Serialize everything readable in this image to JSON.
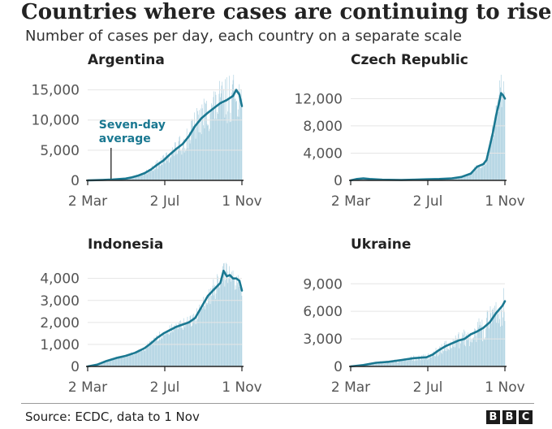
{
  "title": "Countries where cases are continuing to rise",
  "subtitle": "Number of cases per day, each country on a separate scale",
  "source": "Source: ECDC, data to 1 Nov",
  "logo": [
    "B",
    "B",
    "C"
  ],
  "colors": {
    "bar": "#a9cfdf",
    "line": "#1a7891",
    "annotation": "#1a7891",
    "axis": "#222222",
    "grid": "#e5e5e5"
  },
  "chart_data": [
    {
      "type": "bar",
      "title": "Argentina",
      "xlabel": "",
      "ylabel": "",
      "x_ticks": [
        "2 Mar",
        "2 Jul",
        "1 Nov"
      ],
      "x_tick_days": [
        0,
        122,
        244
      ],
      "ylim": [
        0,
        17500
      ],
      "y_ticks": [
        0,
        5000,
        10000,
        15000
      ],
      "y_tick_labels": [
        "0",
        "5,000",
        "10,000",
        "15,000"
      ],
      "daily_noise": 0.3,
      "seven_day_average": [
        [
          0,
          0
        ],
        [
          20,
          60
        ],
        [
          40,
          150
        ],
        [
          60,
          300
        ],
        [
          70,
          500
        ],
        [
          80,
          800
        ],
        [
          90,
          1200
        ],
        [
          100,
          1800
        ],
        [
          110,
          2600
        ],
        [
          120,
          3300
        ],
        [
          130,
          4300
        ],
        [
          140,
          5200
        ],
        [
          150,
          6000
        ],
        [
          160,
          7300
        ],
        [
          170,
          9000
        ],
        [
          180,
          10300
        ],
        [
          190,
          11200
        ],
        [
          200,
          12000
        ],
        [
          210,
          12800
        ],
        [
          220,
          13300
        ],
        [
          230,
          14000
        ],
        [
          235,
          15000
        ],
        [
          240,
          14200
        ],
        [
          244,
          12300
        ]
      ],
      "annotation": {
        "lines": [
          "Seven-day",
          "average"
        ],
        "day": 37
      }
    },
    {
      "type": "bar",
      "title": "Czech Republic",
      "xlabel": "",
      "ylabel": "",
      "x_ticks": [
        "2 Mar",
        "2 Jul",
        "1 Nov"
      ],
      "x_tick_days": [
        0,
        122,
        244
      ],
      "ylim": [
        0,
        15500
      ],
      "y_ticks": [
        0,
        4000,
        8000,
        12000
      ],
      "y_tick_labels": [
        "0",
        "4,000",
        "8,000",
        "12,000"
      ],
      "daily_noise": 0.25,
      "seven_day_average": [
        [
          0,
          0
        ],
        [
          10,
          200
        ],
        [
          20,
          300
        ],
        [
          30,
          200
        ],
        [
          50,
          100
        ],
        [
          80,
          60
        ],
        [
          100,
          100
        ],
        [
          120,
          150
        ],
        [
          140,
          200
        ],
        [
          160,
          300
        ],
        [
          175,
          500
        ],
        [
          190,
          1000
        ],
        [
          200,
          2000
        ],
        [
          210,
          2400
        ],
        [
          215,
          3000
        ],
        [
          220,
          5000
        ],
        [
          225,
          7000
        ],
        [
          230,
          9500
        ],
        [
          235,
          11500
        ],
        [
          238,
          12800
        ],
        [
          241,
          12500
        ],
        [
          244,
          12000
        ]
      ]
    },
    {
      "type": "bar",
      "title": "Indonesia",
      "xlabel": "",
      "ylabel": "",
      "x_ticks": [
        "2 Mar",
        "2 Jul",
        "1 Nov"
      ],
      "x_tick_days": [
        0,
        122,
        244
      ],
      "ylim": [
        0,
        4800
      ],
      "y_ticks": [
        0,
        1000,
        2000,
        3000,
        4000
      ],
      "y_tick_labels": [
        "0",
        "1,000",
        "2,000",
        "3,000",
        "4,000"
      ],
      "daily_noise": 0.15,
      "seven_day_average": [
        [
          0,
          0
        ],
        [
          15,
          80
        ],
        [
          30,
          250
        ],
        [
          45,
          380
        ],
        [
          60,
          480
        ],
        [
          75,
          620
        ],
        [
          90,
          830
        ],
        [
          100,
          1050
        ],
        [
          110,
          1300
        ],
        [
          120,
          1500
        ],
        [
          130,
          1650
        ],
        [
          140,
          1800
        ],
        [
          150,
          1900
        ],
        [
          160,
          2000
        ],
        [
          170,
          2200
        ],
        [
          180,
          2700
        ],
        [
          190,
          3200
        ],
        [
          200,
          3500
        ],
        [
          210,
          3800
        ],
        [
          215,
          4350
        ],
        [
          220,
          4100
        ],
        [
          225,
          4150
        ],
        [
          230,
          4000
        ],
        [
          235,
          4000
        ],
        [
          240,
          3900
        ],
        [
          244,
          3450
        ]
      ]
    },
    {
      "type": "bar",
      "title": "Ukraine",
      "xlabel": "",
      "ylabel": "",
      "x_ticks": [
        "2 Mar",
        "2 Jul",
        "1 Nov"
      ],
      "x_tick_days": [
        0,
        122,
        244
      ],
      "ylim": [
        0,
        11500
      ],
      "y_ticks": [
        0,
        3000,
        6000,
        9000
      ],
      "y_tick_labels": [
        "0",
        "3,000",
        "6,000",
        "9,000"
      ],
      "daily_noise": 0.35,
      "seven_day_average": [
        [
          0,
          0
        ],
        [
          20,
          150
        ],
        [
          40,
          400
        ],
        [
          60,
          500
        ],
        [
          80,
          700
        ],
        [
          100,
          900
        ],
        [
          120,
          1000
        ],
        [
          130,
          1300
        ],
        [
          140,
          1800
        ],
        [
          150,
          2200
        ],
        [
          160,
          2500
        ],
        [
          170,
          2800
        ],
        [
          180,
          3000
        ],
        [
          190,
          3500
        ],
        [
          200,
          3800
        ],
        [
          210,
          4200
        ],
        [
          220,
          4800
        ],
        [
          230,
          5800
        ],
        [
          240,
          6600
        ],
        [
          244,
          7100
        ]
      ]
    }
  ]
}
